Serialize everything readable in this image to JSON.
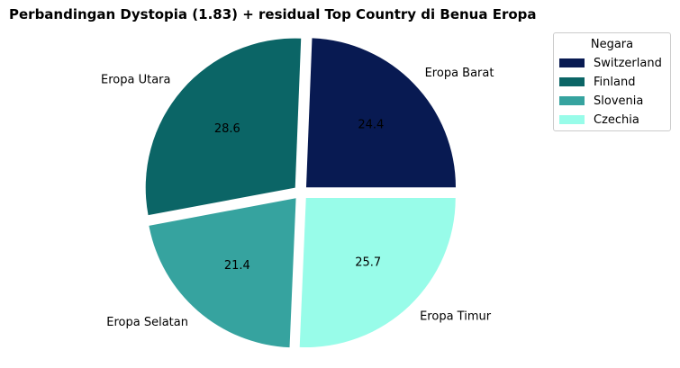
{
  "chart_data": {
    "type": "pie",
    "title": "Perbandingan Dystopia (1.83) + residual Top Country di Benua Eropa",
    "categories": [
      "Eropa Barat",
      "Eropa Utara",
      "Eropa Selatan",
      "Eropa Timur"
    ],
    "values": [
      24.4,
      28.6,
      21.4,
      25.7
    ],
    "value_labels": [
      "24.4",
      "28.6",
      "21.4",
      "25.7"
    ],
    "colors": [
      "#081a52",
      "#0b6566",
      "#36a39f",
      "#98fce9"
    ],
    "explode": [
      0.05,
      0.05,
      0.05,
      0.05
    ],
    "legend": {
      "title": "Negara",
      "placement": "upper-right",
      "entries": [
        "Switzerland",
        "Finland",
        "Slovenia",
        "Czechia"
      ]
    }
  }
}
